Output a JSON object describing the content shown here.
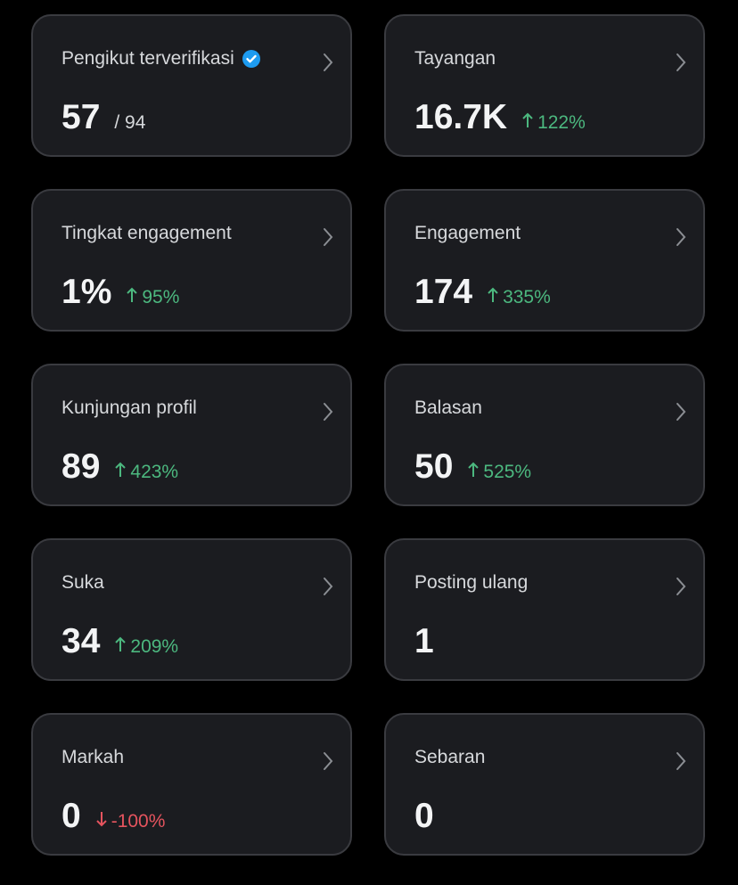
{
  "cards": [
    {
      "label": "Pengikut terverifikasi",
      "value": "57",
      "total": "/ 94",
      "verified": true
    },
    {
      "label": "Tayangan",
      "value": "16.7K",
      "change": "122%",
      "trend": "up"
    },
    {
      "label": "Tingkat engagement",
      "value": "1%",
      "change": "95%",
      "trend": "up"
    },
    {
      "label": "Engagement",
      "value": "174",
      "change": "335%",
      "trend": "up"
    },
    {
      "label": "Kunjungan profil",
      "value": "89",
      "change": "423%",
      "trend": "up"
    },
    {
      "label": "Balasan",
      "value": "50",
      "change": "525%",
      "trend": "up"
    },
    {
      "label": "Suka",
      "value": "34",
      "change": "209%",
      "trend": "up"
    },
    {
      "label": "Posting ulang",
      "value": "1"
    },
    {
      "label": "Markah",
      "value": "0",
      "change": "-100%",
      "trend": "down"
    },
    {
      "label": "Sebaran",
      "value": "0"
    }
  ]
}
